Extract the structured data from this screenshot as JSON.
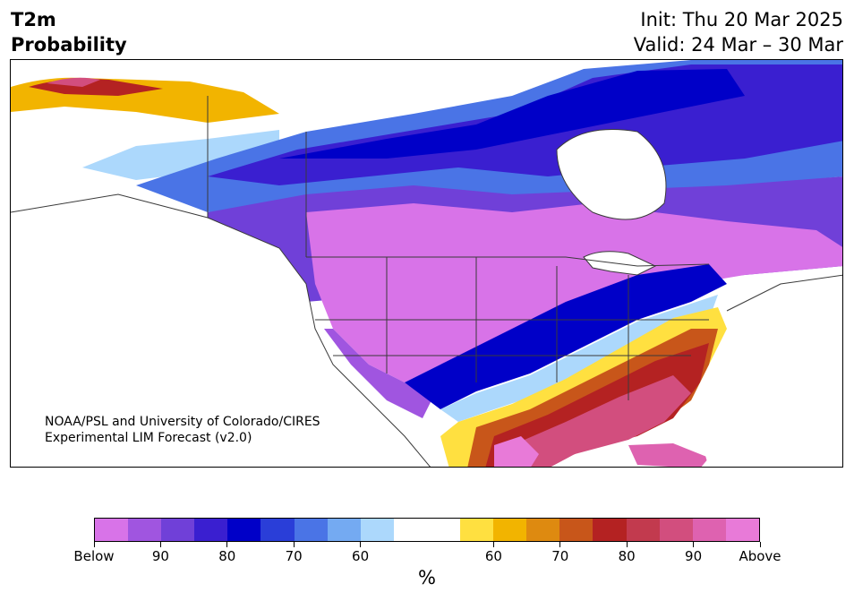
{
  "title": {
    "left_line1": "T2m",
    "left_line2": "Probability",
    "init": "Init: Thu 20 Mar 2025",
    "valid": "Valid: 24 Mar – 30 Mar"
  },
  "credit": {
    "line1": "NOAA/PSL and University of Colorado/CIRES",
    "line2": "Experimental LIM Forecast (v2.0)"
  },
  "colorbar": {
    "colors": [
      "#d873e8",
      "#a055e0",
      "#7040d8",
      "#3a1fd0",
      "#0000c8",
      "#2a3ed8",
      "#4a74e6",
      "#74aaf2",
      "#acd8fc",
      "#ffffff",
      "#ffffff",
      "#ffe040",
      "#f2b400",
      "#de8a10",
      "#c8561a",
      "#b42222",
      "#c23a4e",
      "#d24e7e",
      "#de62b0",
      "#e87ad8"
    ],
    "labels": [
      "Below",
      "90",
      "80",
      "70",
      "60",
      "60",
      "70",
      "80",
      "90",
      "Above"
    ],
    "units": "%"
  },
  "map_colors": {
    "land": "#ffffff",
    "border": "#3a3a3a"
  }
}
